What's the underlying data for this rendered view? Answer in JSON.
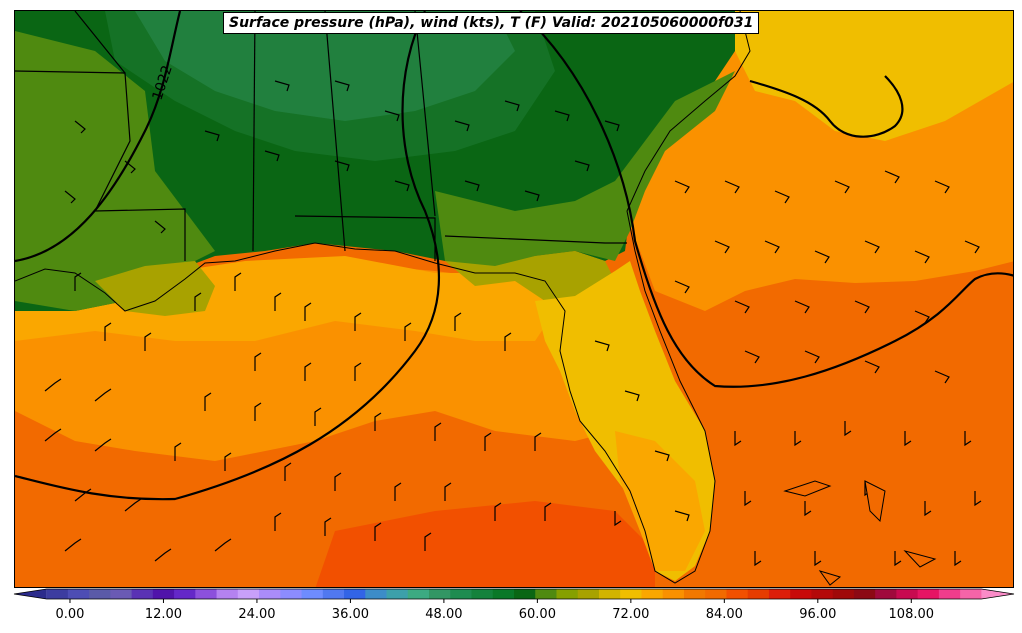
{
  "title": "Surface pressure (hPa), wind (kts), T (F) Valid: 202105060000f031",
  "isobar_label": "1022",
  "colors": {
    "ocean_deep": "#f26a00",
    "ocean_warm": "#fa9100",
    "ocean_hot": "#f25000",
    "gulf_band": "#faa700",
    "land_yellow": "#f0be00",
    "land_olive": "#a8a200",
    "land_green": "#4f8a10",
    "land_dark_green": "#0a6614",
    "land_mid_green": "#1c7a32",
    "land_teal": "#2a8a50",
    "isobar": "#000000"
  },
  "colorbar": {
    "min": -6,
    "max": 120,
    "step": 3,
    "tick_labels": [
      "0.00",
      "12.00",
      "24.00",
      "36.00",
      "48.00",
      "60.00",
      "72.00",
      "84.00",
      "96.00",
      "108.00"
    ],
    "colors": [
      "#2b2b8c",
      "#3c3ca0",
      "#4d4db4",
      "#5a5aa8",
      "#6a5ab4",
      "#5a32b4",
      "#5014aa",
      "#6428c8",
      "#8c50dc",
      "#b482f0",
      "#c8a0fa",
      "#aa8cfa",
      "#8c8cff",
      "#6e8cff",
      "#5078f0",
      "#3264e6",
      "#3c8cc8",
      "#3ca0aa",
      "#3caa82",
      "#329664",
      "#1e8c50",
      "#14823c",
      "#0a7828",
      "#0a6614",
      "#4f8a10",
      "#86a000",
      "#a8a200",
      "#d2b400",
      "#f0be00",
      "#faa700",
      "#fa9100",
      "#f27800",
      "#f26a00",
      "#f25000",
      "#e63c00",
      "#dc1e0a",
      "#c80a0a",
      "#b40a0a",
      "#a00a0a",
      "#8c0a14",
      "#a00a3c",
      "#c80a50",
      "#e61464",
      "#f03c8c",
      "#f564a8",
      "#fa8cc8"
    ]
  }
}
